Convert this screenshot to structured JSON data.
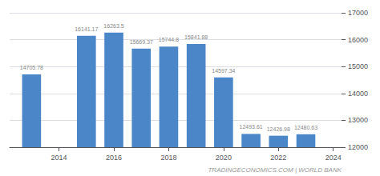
{
  "chart_data": {
    "type": "bar",
    "x": [
      2013,
      2015,
      2016,
      2017,
      2018,
      2019,
      2020,
      2021,
      2022,
      2023
    ],
    "values": [
      14705.78,
      16141.17,
      16263.5,
      15669.37,
      15744.8,
      15841.88,
      14597.34,
      12493.61,
      12426.98,
      12480.63
    ],
    "color": "#4a86c8",
    "xlim": [
      2012.2,
      2024.3
    ],
    "xticks": [
      2014,
      2016,
      2018,
      2020,
      2022,
      2024
    ],
    "ylim": [
      12000,
      17000
    ],
    "yticks": [
      12000,
      13000,
      14000,
      15000,
      16000,
      17000
    ],
    "grid": true,
    "data_labels": true,
    "annotation": "TRADINGECONOMICS.COM | WORLD BANK"
  }
}
